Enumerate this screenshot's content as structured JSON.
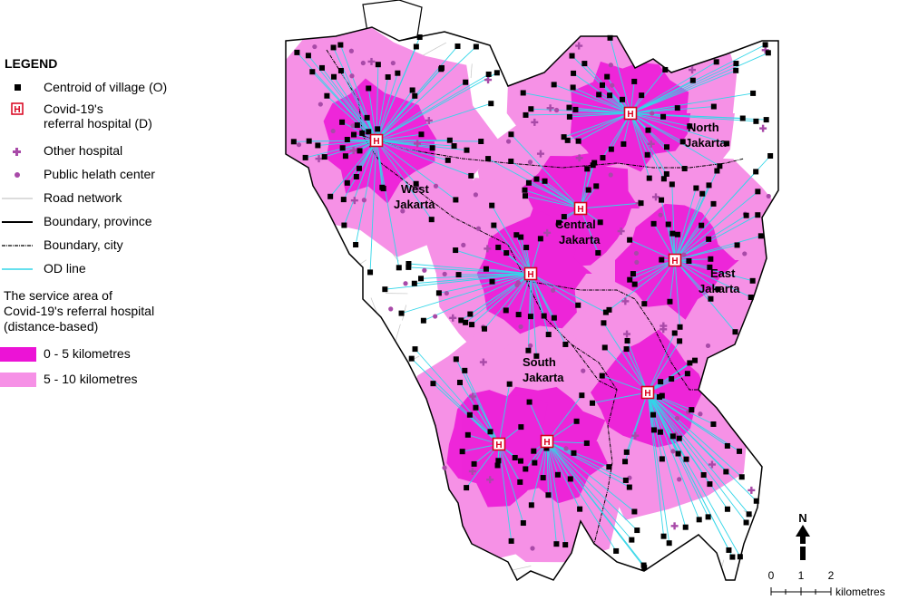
{
  "legend": {
    "title": "LEGEND",
    "items": [
      {
        "id": "centroid",
        "label": "Centroid of village (O)"
      },
      {
        "id": "hospital",
        "label": "Covid-19's",
        "label2": "referral hospital (D)"
      },
      {
        "id": "other_hospital",
        "label": "Other hospital"
      },
      {
        "id": "phc",
        "label": "Public helath center"
      },
      {
        "id": "road",
        "label": "Road network"
      },
      {
        "id": "province",
        "label": "Boundary, province"
      },
      {
        "id": "city",
        "label": "Boundary, city"
      },
      {
        "id": "od",
        "label": "OD line"
      }
    ],
    "service_heading": [
      "The service area of",
      "Covid-19's referral hospital",
      "(distance-based)"
    ],
    "service_classes": [
      {
        "label": "0 - 5 kilometres",
        "color": "#ec13d6"
      },
      {
        "label": "5 - 10 kilometres",
        "color": "#f691e6"
      }
    ]
  },
  "regions": [
    {
      "name": "North Jakarta",
      "line1": "North",
      "line2": "Jakarta"
    },
    {
      "name": "West Jakarta",
      "line1": "West",
      "line2": "Jakarta"
    },
    {
      "name": "Central Jakarta",
      "line1": "Central",
      "line2": "Jakarta"
    },
    {
      "name": "East Jakarta",
      "line1": "East",
      "line2": "Jakarta"
    },
    {
      "name": "South Jakarta",
      "line1": "South",
      "line2": "Jakarta"
    }
  ],
  "hospital_symbol": "H",
  "north_arrow": {
    "label": "N"
  },
  "scale_bar": {
    "ticks": [
      "0",
      "1",
      "2"
    ],
    "unit": "kilometres"
  },
  "colors": {
    "od_line": "#33d6e8",
    "hospital_fill": "#ffffff",
    "hospital_border": "#d8001c",
    "other_hospital": "#a84aa8",
    "phc": "#a84aa8",
    "road": "#b8b8b8"
  }
}
